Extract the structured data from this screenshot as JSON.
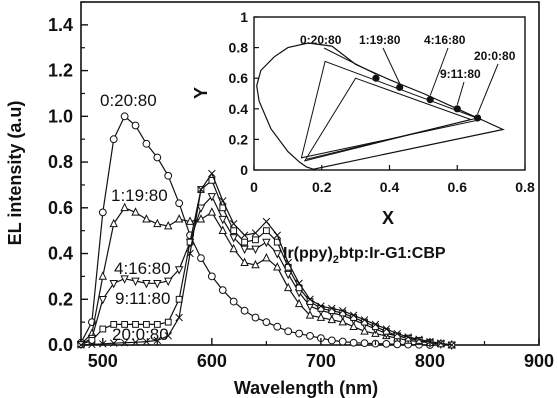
{
  "chart_data": [
    {
      "type": "line",
      "title": "",
      "xlabel": "Wavelength (nm)",
      "ylabel": "EL intensity (a.u)",
      "xlim": [
        480,
        900
      ],
      "ylim": [
        0,
        1.5
      ],
      "xticks": [
        500,
        600,
        700,
        800,
        900
      ],
      "yticks": [
        0.0,
        0.2,
        0.4,
        0.6,
        0.8,
        1.0,
        1.2,
        1.4
      ],
      "grid": false,
      "annotation": {
        "pre": "Ir(ppy)",
        "sub": "2",
        "post": "btp:Ir-G1:CBP"
      },
      "series": [
        {
          "name": "0:20:80",
          "marker": "circle",
          "x": [
            480,
            490,
            500,
            510,
            520,
            530,
            540,
            550,
            560,
            570,
            580,
            590,
            600,
            610,
            620,
            630,
            640,
            650,
            660,
            670,
            680,
            690,
            700,
            710,
            720,
            730,
            740,
            750,
            760,
            770,
            780,
            790,
            800
          ],
          "y": [
            0.01,
            0.1,
            0.58,
            0.9,
            1.0,
            0.96,
            0.88,
            0.82,
            0.74,
            0.62,
            0.48,
            0.38,
            0.3,
            0.24,
            0.19,
            0.15,
            0.12,
            0.1,
            0.08,
            0.06,
            0.05,
            0.04,
            0.03,
            0.02,
            0.015,
            0.01,
            0.008,
            0.006,
            0.005,
            0.003,
            0.002,
            0.001,
            0.0
          ]
        },
        {
          "name": "1:19:80",
          "marker": "triangle-up",
          "x": [
            480,
            490,
            500,
            510,
            520,
            530,
            540,
            550,
            560,
            570,
            580,
            590,
            600,
            610,
            620,
            630,
            640,
            650,
            660,
            670,
            680,
            690,
            700,
            710,
            720,
            730,
            740,
            750,
            760,
            770,
            780,
            790,
            800,
            810,
            820
          ],
          "y": [
            0.005,
            0.05,
            0.3,
            0.53,
            0.6,
            0.58,
            0.55,
            0.53,
            0.52,
            0.55,
            0.54,
            0.55,
            0.58,
            0.5,
            0.42,
            0.36,
            0.35,
            0.38,
            0.34,
            0.25,
            0.18,
            0.13,
            0.12,
            0.11,
            0.1,
            0.08,
            0.06,
            0.05,
            0.04,
            0.03,
            0.02,
            0.015,
            0.01,
            0.005,
            0.0
          ]
        },
        {
          "name": "4:16:80",
          "marker": "triangle-down",
          "x": [
            480,
            490,
            500,
            510,
            520,
            530,
            540,
            550,
            560,
            570,
            580,
            590,
            600,
            610,
            620,
            630,
            640,
            650,
            660,
            670,
            680,
            690,
            700,
            710,
            720,
            730,
            740,
            750,
            760,
            770,
            780,
            790,
            800,
            810,
            820
          ],
          "y": [
            0.003,
            0.03,
            0.2,
            0.27,
            0.29,
            0.28,
            0.27,
            0.27,
            0.28,
            0.33,
            0.45,
            0.6,
            0.65,
            0.55,
            0.47,
            0.42,
            0.42,
            0.45,
            0.4,
            0.31,
            0.23,
            0.17,
            0.15,
            0.14,
            0.13,
            0.11,
            0.09,
            0.07,
            0.05,
            0.04,
            0.03,
            0.02,
            0.01,
            0.005,
            0.0
          ]
        },
        {
          "name": "9:11:80",
          "marker": "square",
          "x": [
            480,
            490,
            500,
            510,
            520,
            530,
            540,
            550,
            560,
            570,
            580,
            590,
            600,
            610,
            620,
            630,
            640,
            650,
            660,
            670,
            680,
            690,
            700,
            710,
            720,
            730,
            740,
            750,
            760,
            770,
            780,
            790,
            800,
            810,
            820
          ],
          "y": [
            0.002,
            0.02,
            0.07,
            0.09,
            0.09,
            0.09,
            0.09,
            0.09,
            0.1,
            0.2,
            0.45,
            0.68,
            0.72,
            0.6,
            0.5,
            0.45,
            0.46,
            0.5,
            0.45,
            0.34,
            0.25,
            0.19,
            0.16,
            0.15,
            0.14,
            0.12,
            0.1,
            0.08,
            0.06,
            0.04,
            0.03,
            0.02,
            0.01,
            0.005,
            0.0
          ]
        },
        {
          "name": "20:0:80",
          "marker": "cross",
          "x": [
            480,
            490,
            500,
            510,
            520,
            530,
            540,
            550,
            560,
            570,
            580,
            590,
            600,
            610,
            620,
            630,
            640,
            650,
            660,
            670,
            680,
            690,
            700,
            710,
            720,
            730,
            740,
            750,
            760,
            770,
            780,
            790,
            800,
            810,
            820
          ],
          "y": [
            0.0,
            0.002,
            0.005,
            0.008,
            0.01,
            0.012,
            0.015,
            0.02,
            0.04,
            0.12,
            0.4,
            0.68,
            0.75,
            0.63,
            0.53,
            0.48,
            0.49,
            0.54,
            0.48,
            0.36,
            0.27,
            0.2,
            0.17,
            0.16,
            0.15,
            0.13,
            0.11,
            0.09,
            0.07,
            0.05,
            0.035,
            0.025,
            0.015,
            0.008,
            0.0
          ]
        }
      ]
    },
    {
      "type": "scatter",
      "title": "",
      "xlabel": "X",
      "ylabel": "Y",
      "xlim": [
        0,
        0.8
      ],
      "ylim": [
        0,
        1.0
      ],
      "xticks": [
        0,
        0.2,
        0.4,
        0.6,
        0.8
      ],
      "yticks": [
        0,
        0.2,
        0.4,
        0.6,
        0.8,
        1
      ],
      "points": [
        {
          "label": "0:20:80",
          "x": 0.36,
          "y": 0.6
        },
        {
          "label": "1:19:80",
          "x": 0.43,
          "y": 0.54
        },
        {
          "label": "4:16:80",
          "x": 0.52,
          "y": 0.46
        },
        {
          "label": "9:11:80",
          "x": 0.6,
          "y": 0.4
        },
        {
          "label": "20:0:80",
          "x": 0.66,
          "y": 0.34
        }
      ],
      "locus": [
        [
          0.175,
          0.005
        ],
        [
          0.155,
          0.02
        ],
        [
          0.135,
          0.05
        ],
        [
          0.1,
          0.12
        ],
        [
          0.05,
          0.27
        ],
        [
          0.015,
          0.45
        ],
        [
          0.008,
          0.55
        ],
        [
          0.02,
          0.65
        ],
        [
          0.06,
          0.74
        ],
        [
          0.1,
          0.8
        ],
        [
          0.16,
          0.83
        ],
        [
          0.23,
          0.81
        ],
        [
          0.3,
          0.69
        ],
        [
          0.4,
          0.59
        ],
        [
          0.5,
          0.5
        ],
        [
          0.6,
          0.4
        ],
        [
          0.68,
          0.32
        ],
        [
          0.735,
          0.265
        ]
      ],
      "gamut_triangles": [
        [
          [
            0.64,
            0.33
          ],
          [
            0.3,
            0.6
          ],
          [
            0.15,
            0.06
          ]
        ],
        [
          [
            0.67,
            0.33
          ],
          [
            0.21,
            0.71
          ],
          [
            0.14,
            0.08
          ]
        ]
      ]
    }
  ]
}
